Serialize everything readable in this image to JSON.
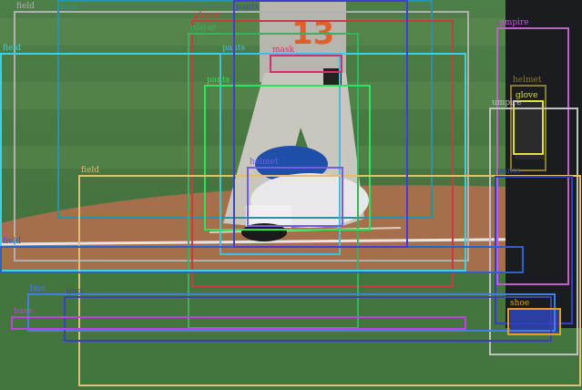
{
  "image": {
    "description_icon": "baseball-photo",
    "colors": {
      "grass_light": "#5a8a4e",
      "grass_dark": "#3f6e3a",
      "dirt": "#a87250",
      "chalk": "#e8e6df"
    }
  },
  "annotations": [
    {
      "label": "field",
      "color": "#b0b0b0"
    },
    {
      "label": "man",
      "color": "#2a8fb0"
    },
    {
      "label": "player",
      "color": "#c04040"
    },
    {
      "label": "player",
      "color": "#3bb060"
    },
    {
      "label": "field",
      "color": "#40d0e0"
    },
    {
      "label": "pants",
      "color": "#40c0e0"
    },
    {
      "label": "pants",
      "color": "#30e060"
    },
    {
      "label": "umpire",
      "color": "#c060d0"
    },
    {
      "label": "glove",
      "color": "#e0e040"
    },
    {
      "label": "helmet",
      "color": "#8a7a30"
    },
    {
      "label": "umpire",
      "color": "#c0c0c0"
    },
    {
      "label": "field",
      "color": "#e0c070"
    },
    {
      "label": "helmet",
      "color": "#7060e0"
    },
    {
      "label": "pants",
      "color": "#3040c0"
    },
    {
      "label": "field",
      "color": "#3060c0"
    },
    {
      "label": "line",
      "color": "#4080e0"
    },
    {
      "label": "line",
      "color": "#4040b0"
    },
    {
      "label": "base",
      "color": "#c040e0"
    },
    {
      "label": "shoe",
      "color": "#e0a020"
    },
    {
      "label": "pants",
      "color": "#4040d0"
    },
    {
      "label": "mask",
      "color": "#d03070"
    }
  ]
}
